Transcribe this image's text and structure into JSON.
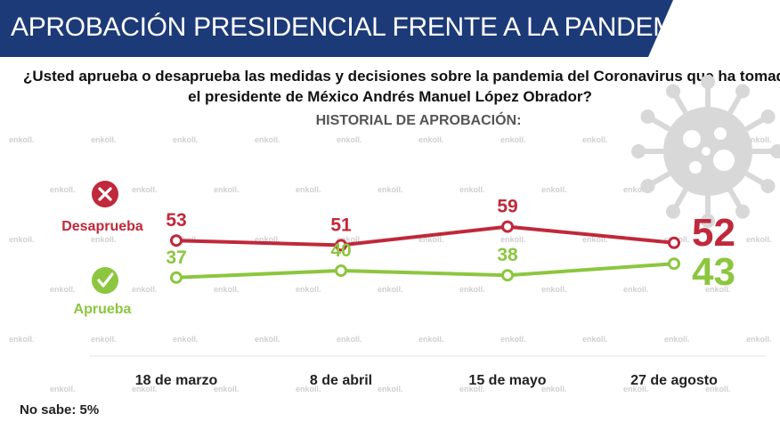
{
  "header": {
    "title": "APROBACIÓN PRESIDENCIAL FRENTE A LA PANDEMIA"
  },
  "question": {
    "line1": "¿Usted aprueba o desaprueba las medidas y decisiones sobre la pandemia del Coronavirus que ha tomado",
    "line2": "el presidente de México Andrés Manuel López Obrador?"
  },
  "subtitle": "HISTORIAL DE APROBACIÓN:",
  "footnote": "No sabe: 5%",
  "watermark": "enkoll.",
  "colors": {
    "banner": "#1d3a78",
    "desaprueba": "#c0283b",
    "aprueba": "#8cc63f",
    "virus": "#d8d8d8"
  },
  "chart_data": {
    "type": "line",
    "categories": [
      "18 de marzo",
      "8 de abril",
      "15 de mayo",
      "27 de agosto"
    ],
    "series": [
      {
        "name": "Desaprueba",
        "values": [
          53,
          51,
          59,
          52
        ],
        "color": "#c0283b",
        "icon": "x-icon"
      },
      {
        "name": "Aprueba",
        "values": [
          37,
          40,
          38,
          43
        ],
        "color": "#8cc63f",
        "icon": "check-icon"
      }
    ],
    "grid": false,
    "legend_position": "left"
  }
}
